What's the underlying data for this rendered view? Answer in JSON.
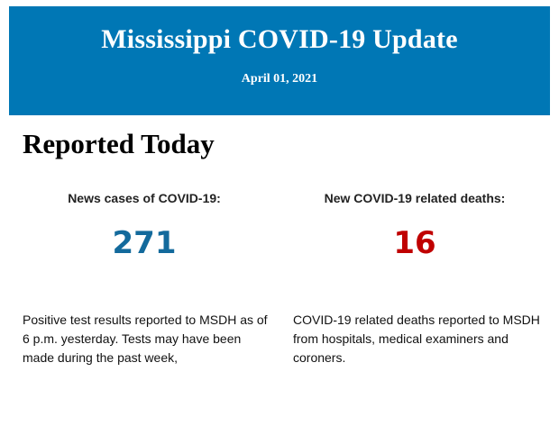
{
  "header": {
    "title": "Mississippi COVID-19 Update",
    "date": "April 01, 2021",
    "background_color": "#0077b5"
  },
  "section": {
    "title": "Reported Today"
  },
  "cases": {
    "label": "News cases of COVID-19:",
    "value": "271",
    "color": "#136a9c",
    "description": "Positive test results reported to MSDH as of 6 p.m. yesterday. Tests may have been made during the past week,"
  },
  "deaths": {
    "label": "New COVID-19 related deaths:",
    "value": "16",
    "color": "#c00000",
    "description": "COVID-19 related deaths reported to MSDH from hospitals, medical examiners and coroners."
  }
}
